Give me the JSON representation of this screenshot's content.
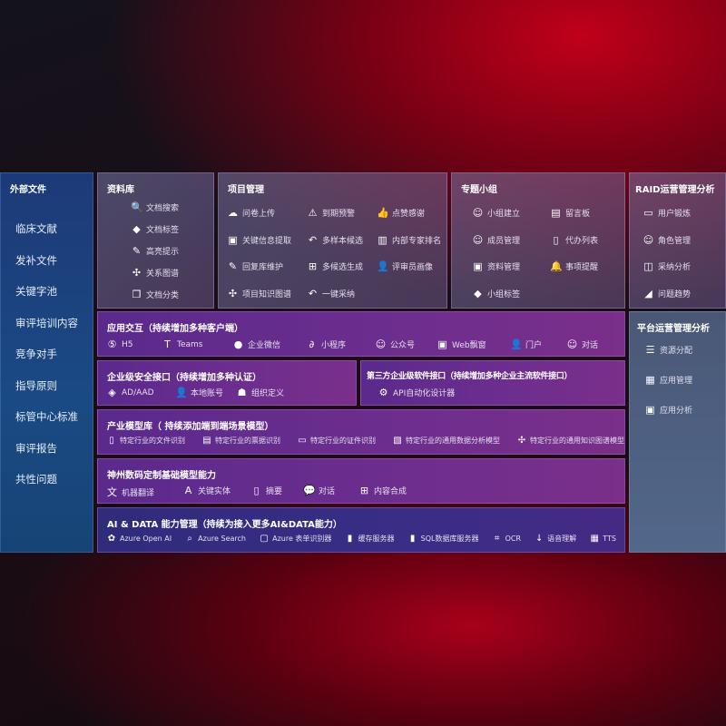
{
  "external": {
    "title": "外部文件",
    "items": [
      "临床文献",
      "发补文件",
      "关键字池",
      "审评培训内容",
      "竞争对手",
      "指导原则",
      "标管中心标准",
      "审评报告",
      "共性问题"
    ]
  },
  "library": {
    "title": "资料库",
    "items": [
      {
        "label": "文档搜索",
        "icon": "doc-search-icon"
      },
      {
        "label": "文档标签",
        "icon": "tag-icon"
      },
      {
        "label": "高亮提示",
        "icon": "pen-icon"
      },
      {
        "label": "关系图谱",
        "icon": "graph-icon"
      },
      {
        "label": "文档分类",
        "icon": "doc-copy-icon"
      }
    ]
  },
  "project": {
    "title": "项目管理",
    "items": [
      {
        "label": "问卷上传",
        "icon": "cloud-upload-icon"
      },
      {
        "label": "到期预警",
        "icon": "alarm-icon"
      },
      {
        "label": "点赞感谢",
        "icon": "thumbs-up-icon"
      },
      {
        "label": "关键信息提取",
        "icon": "window-icon"
      },
      {
        "label": "多样本候选",
        "icon": "reply-icon"
      },
      {
        "label": "内部专家排名",
        "icon": "ranking-icon"
      },
      {
        "label": "回复库维护",
        "icon": "edit-icon"
      },
      {
        "label": "多候选生成",
        "icon": "puzzle-icon"
      },
      {
        "label": "评审员画像",
        "icon": "user-icon"
      },
      {
        "label": "项目知识图谱",
        "icon": "graph-icon"
      },
      {
        "label": "一键采纳",
        "icon": "reply-icon"
      }
    ]
  },
  "group": {
    "title": "专题小组",
    "items": [
      {
        "label": "小组建立",
        "icon": "group-icon"
      },
      {
        "label": "留言板",
        "icon": "bbs-icon"
      },
      {
        "label": "成员管理",
        "icon": "user-add-icon"
      },
      {
        "label": "代办列表",
        "icon": "clipboard-icon"
      },
      {
        "label": "资料管理",
        "icon": "folder-icon"
      },
      {
        "label": "事项提醒",
        "icon": "bell-icon"
      },
      {
        "label": "小组标签",
        "icon": "tag-icon"
      }
    ]
  },
  "raid": {
    "title": "RAID运营管理分析",
    "items": [
      {
        "label": "用户锻炼",
        "icon": "id-card-icon"
      },
      {
        "label": "角色管理",
        "icon": "users-icon"
      },
      {
        "label": "采纳分析",
        "icon": "qa-icon"
      },
      {
        "label": "问题趋势",
        "icon": "trend-icon"
      }
    ]
  },
  "platform": {
    "title": "平台运营管理分析",
    "items": [
      {
        "label": "资源分配",
        "icon": "checklist-icon"
      },
      {
        "label": "应用管理",
        "icon": "apps-icon"
      },
      {
        "label": "应用分析",
        "icon": "analytics-icon"
      }
    ]
  },
  "app": {
    "title": "应用交互（持续增加多种客户端）",
    "items": [
      {
        "label": "H5",
        "icon": "html5-icon"
      },
      {
        "label": "Teams",
        "icon": "teams-icon"
      },
      {
        "label": "企业微信",
        "icon": "wechat-icon"
      },
      {
        "label": "小程序",
        "icon": "miniprogram-icon"
      },
      {
        "label": "公众号",
        "icon": "users-icon"
      },
      {
        "label": "Web飘窗",
        "icon": "window-icon"
      },
      {
        "label": "门户",
        "icon": "portal-icon"
      },
      {
        "label": "对话",
        "icon": "chat-users-icon"
      }
    ]
  },
  "security": {
    "title": "企业级安全接口（持续增加多种认证）",
    "items": [
      {
        "label": "AD/AAD",
        "icon": "diamond-icon"
      },
      {
        "label": "本地账号",
        "icon": "user-lock-icon"
      },
      {
        "label": "组织定义",
        "icon": "org-icon"
      }
    ]
  },
  "thirdparty": {
    "title": "第三方企业级软件接口（持续增加多种企业主流软件接口）",
    "items": [
      {
        "label": "API自动化设计器",
        "icon": "gear-icon"
      }
    ]
  },
  "industry": {
    "title": "产业模型库（ 持续添加端到端场景模型）",
    "items": [
      {
        "label": "特定行业的文件识别",
        "icon": "file-icon"
      },
      {
        "label": "特定行业的票据识别",
        "icon": "receipt-icon"
      },
      {
        "label": "特定行业的证件识别",
        "icon": "id-card-icon"
      },
      {
        "label": "特定行业的通用数据分析模型",
        "icon": "chart-icon"
      },
      {
        "label": "特定行业的通用知识图谱模型",
        "icon": "graph-icon"
      }
    ]
  },
  "base": {
    "title": "神州数码定制基础模型能力",
    "items": [
      {
        "label": "机器翻译",
        "icon": "translate-icon"
      },
      {
        "label": "关键实体",
        "icon": "entity-icon"
      },
      {
        "label": "摘要",
        "icon": "doc-icon"
      },
      {
        "label": "对话",
        "icon": "chat-icon"
      },
      {
        "label": "内容合成",
        "icon": "puzzle-icon"
      }
    ]
  },
  "aidata": {
    "title": "AI & DATA 能力管理（持续为接入更多AI&DATA能力）",
    "items": [
      {
        "label": "Azure Open AI",
        "icon": "openai-icon"
      },
      {
        "label": "Azure Search",
        "icon": "search-icon"
      },
      {
        "label": "Azure 表单识别器",
        "icon": "form-icon"
      },
      {
        "label": "缓存服务器",
        "icon": "cache-icon"
      },
      {
        "label": "SQL数据库服务器",
        "icon": "database-icon"
      },
      {
        "label": "OCR",
        "icon": "ocr-icon"
      },
      {
        "label": "语音理解",
        "icon": "speech-icon"
      },
      {
        "label": "TTS",
        "icon": "tts-icon"
      }
    ]
  }
}
